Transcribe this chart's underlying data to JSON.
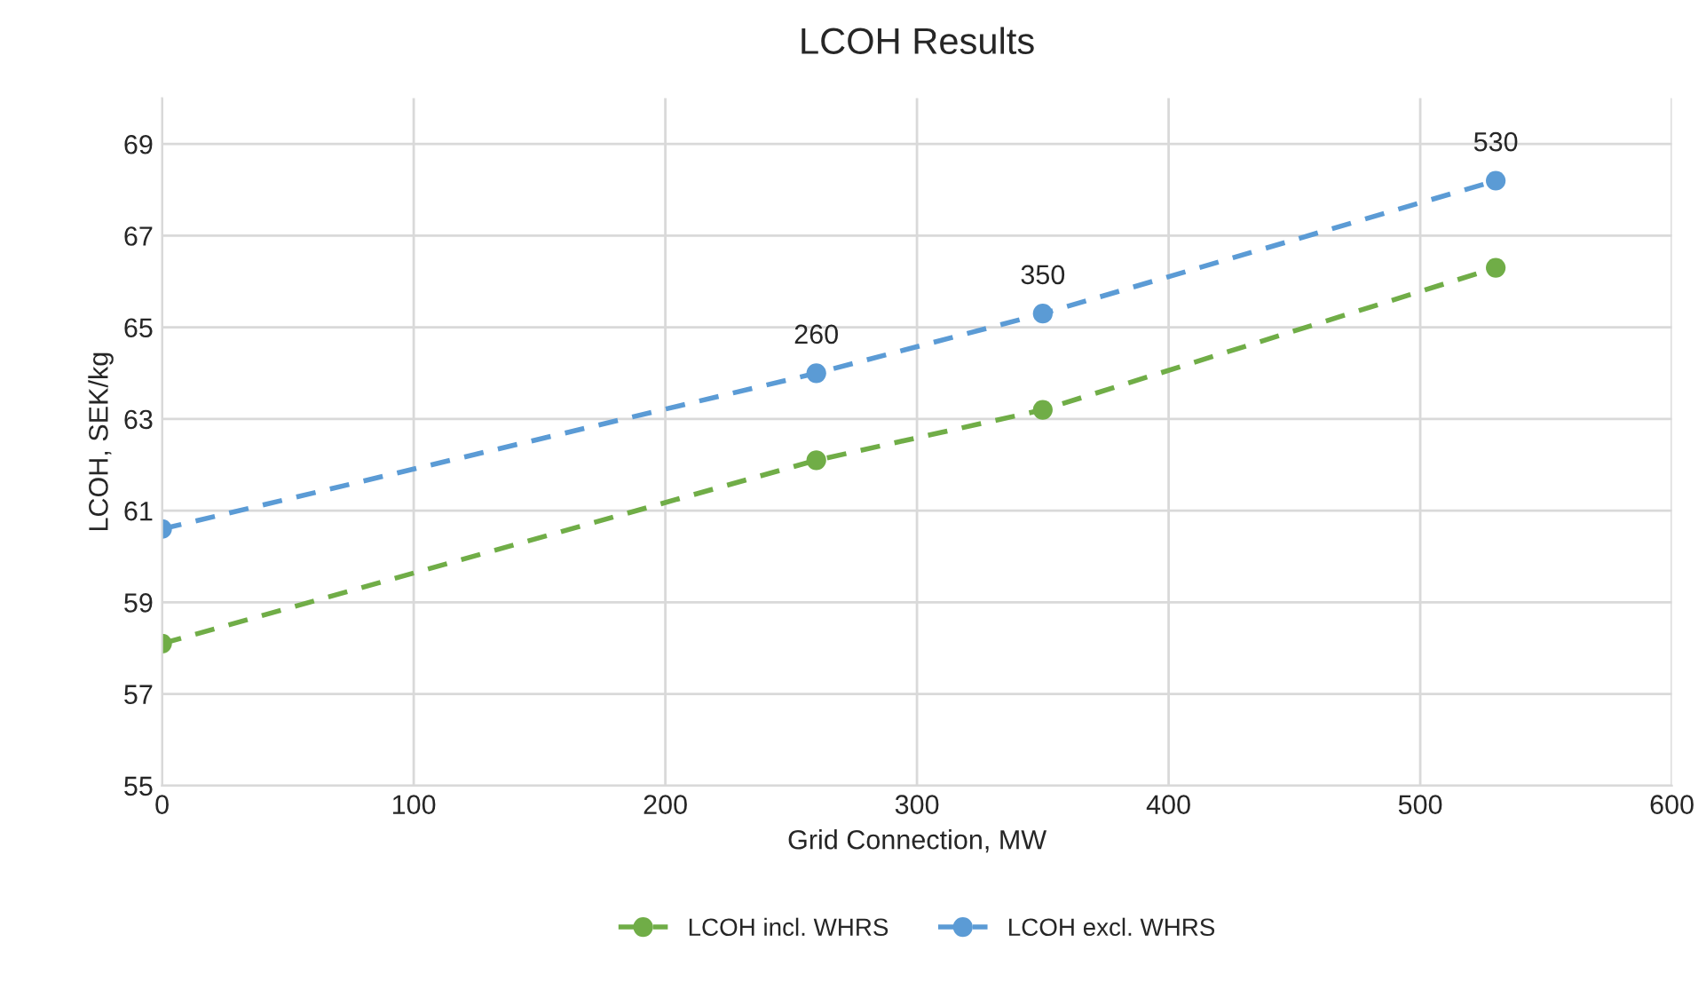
{
  "chart_data": {
    "type": "line",
    "title": "LCOH Results",
    "xlabel": "Grid Connection, MW",
    "ylabel": "LCOH, SEK/kg",
    "x": [
      0,
      260,
      350,
      530
    ],
    "series": [
      {
        "name": "LCOH incl. WHRS",
        "color": "#70ad47",
        "values": [
          58.1,
          62.1,
          63.2,
          66.3
        ]
      },
      {
        "name": "LCOH excl. WHRS",
        "color": "#5b9bd5",
        "values": [
          60.6,
          64.0,
          65.3,
          68.2
        ]
      }
    ],
    "annotations": [
      {
        "text": "260",
        "x": 260,
        "y": 64.0
      },
      {
        "text": "350",
        "x": 350,
        "y": 65.3
      },
      {
        "text": "530",
        "x": 530,
        "y": 68.2
      }
    ],
    "xlim": [
      0,
      600
    ],
    "xticks": [
      0,
      100,
      200,
      300,
      400,
      500,
      600
    ],
    "ylim": [
      55,
      70
    ],
    "yticks": [
      55,
      57,
      59,
      61,
      63,
      65,
      67,
      69
    ],
    "grid": true,
    "legend": "bottom",
    "marker": "circle",
    "line_style": "dashed"
  }
}
